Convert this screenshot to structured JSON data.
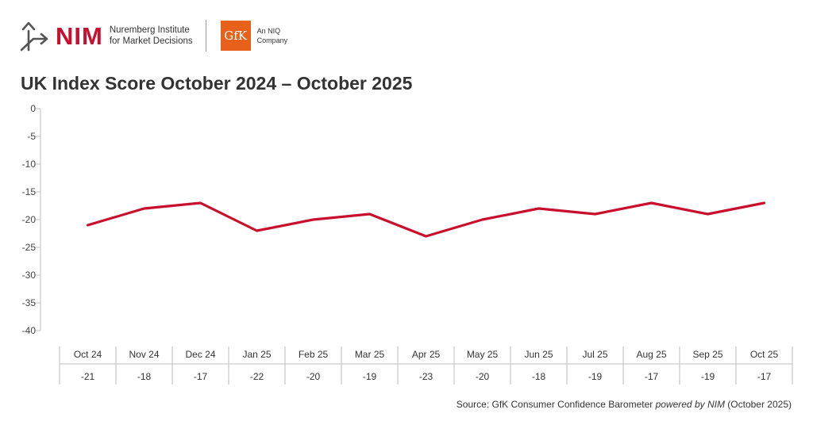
{
  "header": {
    "nim_word": "NIM",
    "nim_line1": "Nuremberg Institute",
    "nim_line2": "for Market Decisions",
    "gfk_word": "GfK",
    "gfk_line1": "An NIQ",
    "gfk_line2": "Company"
  },
  "colors": {
    "accent": "#c8102e",
    "gfk": "#e8611a",
    "logo_gray": "#555555"
  },
  "source": {
    "prefix": "Source: GfK Consumer Confidence Barometer ",
    "italic": "powered by NIM",
    "suffix": " (October 2025)"
  },
  "chart_data": {
    "type": "line",
    "title": "UK Index Score October 2024 – October 2025",
    "xlabel": "",
    "ylabel": "",
    "ylim": [
      -40,
      0
    ],
    "yticks": [
      0,
      -5,
      -10,
      -15,
      -20,
      -25,
      -30,
      -35,
      -40
    ],
    "grid": false,
    "categories": [
      "Oct 24",
      "Nov 24",
      "Dec 24",
      "Jan 25",
      "Feb 25",
      "Mar 25",
      "Apr 25",
      "May 25",
      "Jun 25",
      "Jul 25",
      "Aug 25",
      "Sep 25",
      "Oct 25"
    ],
    "series": [
      {
        "name": "UK Index Score",
        "values": [
          -21,
          -18,
          -17,
          -22,
          -20,
          -19,
          -23,
          -20,
          -18,
          -19,
          -17,
          -19,
          -17
        ],
        "labels": [
          "-21",
          "-18",
          "-17",
          "-22",
          "-20",
          "-19",
          "-23",
          "-20",
          "-18",
          "-19",
          "-17",
          "-19",
          "-17"
        ]
      }
    ]
  }
}
